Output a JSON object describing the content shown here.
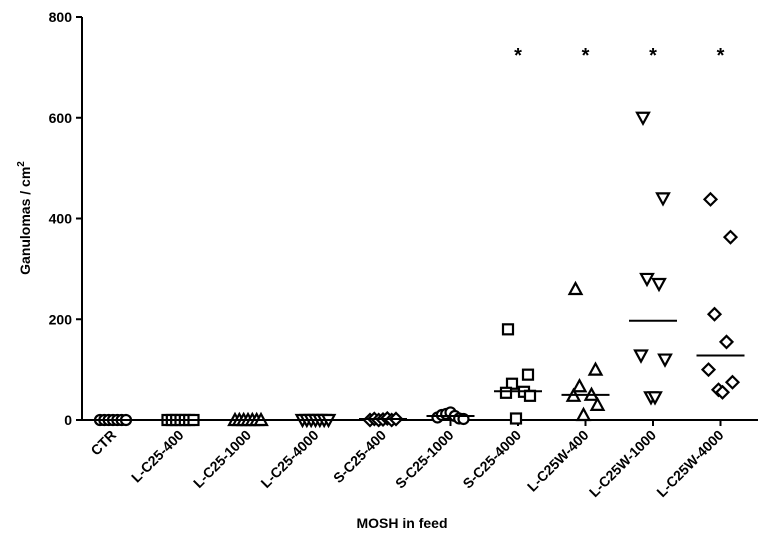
{
  "chart_data": {
    "type": "scatter",
    "xlabel": "MOSH in feed",
    "ylabel_main": "Ganulomas / cm",
    "ylabel_sup": "2",
    "ylim": [
      0,
      800
    ],
    "yticks": [
      "0",
      "200",
      "400",
      "600",
      "800"
    ],
    "categories": [
      "CTR",
      "L-C25-400",
      "L-C25-1000",
      "L-C25-4000",
      "S-C25-400",
      "S-C25-1000",
      "S-C25-4000",
      "L-C25W-400",
      "L-C25W-1000",
      "L-C25W-4000"
    ],
    "groups": [
      {
        "category": "CTR",
        "marker": "circle",
        "values": [
          0,
          0,
          0,
          0,
          0,
          0,
          0
        ],
        "mean": 0,
        "significance": ""
      },
      {
        "category": "L-C25-400",
        "marker": "square",
        "values": [
          0,
          0,
          0,
          0,
          0,
          0,
          0
        ],
        "mean": 0,
        "significance": ""
      },
      {
        "category": "L-C25-1000",
        "marker": "triangle-up",
        "values": [
          0,
          0,
          0,
          0,
          0,
          0,
          0
        ],
        "mean": 0,
        "significance": ""
      },
      {
        "category": "L-C25-4000",
        "marker": "triangle-down",
        "values": [
          0,
          0,
          0,
          0,
          0,
          0,
          0
        ],
        "mean": 0,
        "significance": ""
      },
      {
        "category": "S-C25-400",
        "marker": "diamond",
        "values": [
          0,
          2,
          0,
          1,
          3,
          0,
          2
        ],
        "mean": 2,
        "significance": ""
      },
      {
        "category": "S-C25-1000",
        "marker": "circle",
        "values": [
          5,
          10,
          12,
          15,
          8,
          3,
          2
        ],
        "mean": 8,
        "significance": ""
      },
      {
        "category": "S-C25-4000",
        "marker": "square",
        "values": [
          180,
          90,
          72,
          56,
          54,
          48,
          3
        ],
        "mean": 57,
        "significance": "*"
      },
      {
        "category": "L-C25W-400",
        "marker": "triangle-up",
        "values": [
          260,
          100,
          67,
          50,
          48,
          30,
          10
        ],
        "mean": 50,
        "significance": "*"
      },
      {
        "category": "L-C25W-1000",
        "marker": "triangle-down",
        "values": [
          600,
          440,
          280,
          270,
          128,
          120,
          45,
          45
        ],
        "mean": 197,
        "significance": "*"
      },
      {
        "category": "L-C25W-4000",
        "marker": "diamond",
        "values": [
          438,
          363,
          210,
          155,
          100,
          75,
          60,
          55
        ],
        "mean": 128,
        "significance": "*"
      }
    ]
  }
}
